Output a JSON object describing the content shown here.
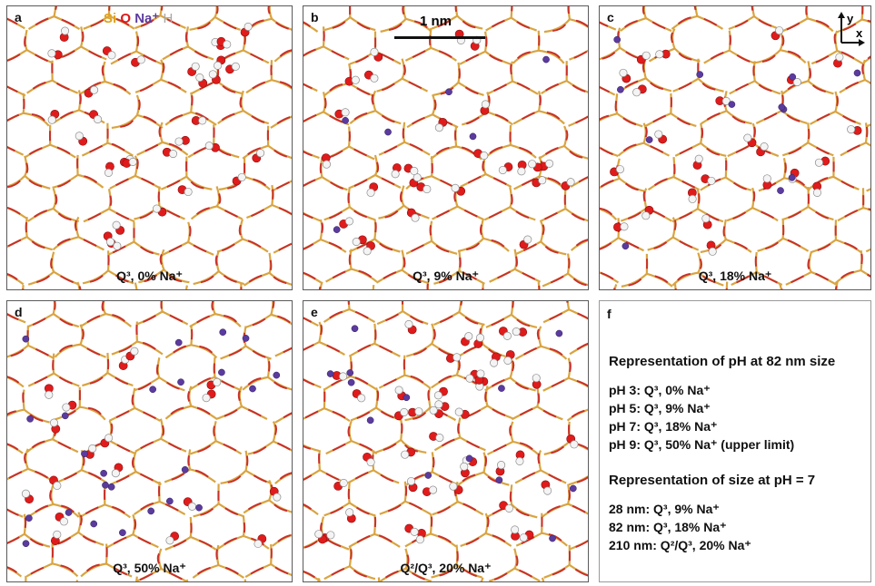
{
  "legend": {
    "si": "Si",
    "o": "O",
    "na": "Na⁺",
    "h": "H"
  },
  "scale_bar": "1 nm",
  "axes": {
    "x": "x",
    "y": "y"
  },
  "colors": {
    "si_bond": "#d9a441",
    "o_bond": "#c8302a",
    "oxygen": "#e01b1b",
    "hydrogen": "#f4f4f4",
    "sodium": "#5b3b9e",
    "border": "#5a5a5a"
  },
  "panels": [
    {
      "label": "a",
      "caption": "Q³, 0% Na⁺",
      "na_count": 0,
      "oh_count": 30
    },
    {
      "label": "b",
      "caption": "Q³, 9% Na⁺",
      "na_count": 6,
      "oh_count": 27
    },
    {
      "label": "c",
      "caption": "Q³, 18% Na⁺",
      "na_count": 12,
      "oh_count": 24
    },
    {
      "label": "d",
      "caption": "Q³, 50% Na⁺",
      "na_count": 24,
      "oh_count": 18
    },
    {
      "label": "e",
      "caption": "Q²/Q³, 20% Na⁺",
      "na_count": 13,
      "oh_count": 42
    }
  ],
  "panel_f": {
    "label": "f",
    "heading1": "Representation of pH at 82 nm size",
    "ph_lines": [
      "pH 3: Q³, 0% Na⁺",
      "pH 5: Q³, 9% Na⁺",
      "pH 7: Q³, 18% Na⁺",
      "pH 9: Q³, 50% Na⁺ (upper limit)"
    ],
    "heading2": "Representation of size at pH = 7",
    "size_lines": [
      "28 nm: Q³, 9% Na⁺",
      "82 nm: Q³, 18% Na⁺",
      "210 nm: Q²/Q³, 20% Na⁺"
    ]
  }
}
